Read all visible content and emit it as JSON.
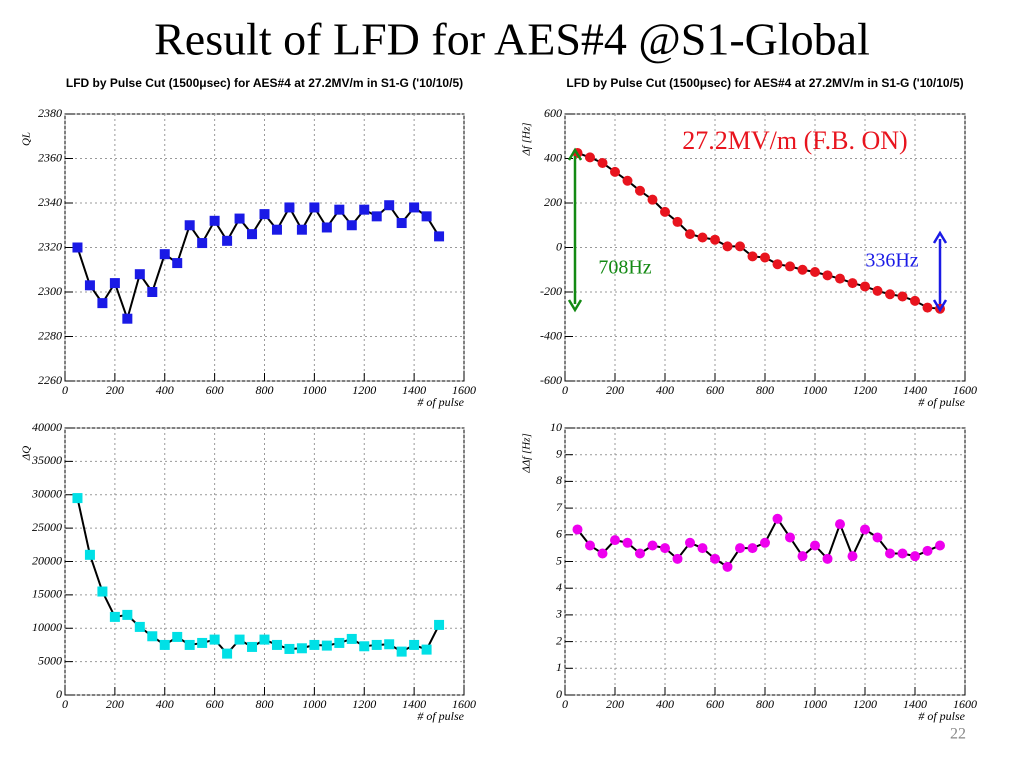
{
  "title": "Result of LFD for AES#4 @S1-Global",
  "page_number": "22",
  "chart_data": [
    {
      "type": "line",
      "marker": "square",
      "title": "LFD by Pulse Cut (1500μsec) for AES#4 at 27.2MV/m in S1-G ('10/10/5)",
      "ylabel": "QL",
      "xlabel": "# of pulse",
      "x": [
        50,
        100,
        150,
        200,
        250,
        300,
        350,
        400,
        450,
        500,
        550,
        600,
        650,
        700,
        750,
        800,
        850,
        900,
        950,
        1000,
        1050,
        1100,
        1150,
        1200,
        1250,
        1300,
        1350,
        1400,
        1450,
        1500
      ],
      "values": [
        2320,
        2303,
        2295,
        2304,
        2288,
        2308,
        2300,
        2317,
        2313,
        2330,
        2322,
        2332,
        2323,
        2333,
        2326,
        2335,
        2328,
        2338,
        2328,
        2338,
        2329,
        2337,
        2330,
        2337,
        2334,
        2339,
        2331,
        2338,
        2334,
        2325
      ],
      "color": "#1a1ae6",
      "xlim": [
        0,
        1600
      ],
      "xticks": [
        0,
        200,
        400,
        600,
        800,
        1000,
        1200,
        1400,
        1600
      ],
      "ylim": [
        2260,
        2380
      ],
      "yticks": [
        2260,
        2280,
        2300,
        2320,
        2340,
        2360,
        2380
      ],
      "grid": true
    },
    {
      "type": "line",
      "marker": "circle",
      "title": "LFD by Pulse Cut (1500μsec) for AES#4 at 27.2MV/m in S1-G ('10/10/5)",
      "ylabel": "Δf [Hz]",
      "xlabel": "# of pulse",
      "x": [
        50,
        100,
        150,
        200,
        250,
        300,
        350,
        400,
        450,
        500,
        550,
        600,
        650,
        700,
        750,
        800,
        850,
        900,
        950,
        1000,
        1050,
        1100,
        1150,
        1200,
        1250,
        1300,
        1350,
        1400,
        1450,
        1500
      ],
      "values": [
        425,
        405,
        380,
        340,
        300,
        255,
        215,
        160,
        115,
        60,
        45,
        35,
        5,
        5,
        -40,
        -45,
        -75,
        -85,
        -100,
        -110,
        -125,
        -140,
        -160,
        -175,
        -195,
        -210,
        -220,
        -240,
        -270,
        -275
      ],
      "color": "#e8141e",
      "xlim": [
        0,
        1600
      ],
      "xticks": [
        0,
        200,
        400,
        600,
        800,
        1000,
        1200,
        1400,
        1600
      ],
      "ylim": [
        -600,
        600
      ],
      "yticks": [
        -600,
        -400,
        -200,
        0,
        200,
        400,
        600
      ],
      "grid": true,
      "annotations": [
        {
          "text": "27.2MV/m (F.B. ON)",
          "color": "#e8141e"
        },
        {
          "text": "708Hz",
          "color": "#138a13"
        },
        {
          "text": "336Hz",
          "color": "#1a1ae6"
        }
      ]
    },
    {
      "type": "line",
      "marker": "square",
      "ylabel": "ΔQ",
      "xlabel": "# of pulse",
      "x": [
        50,
        100,
        150,
        200,
        250,
        300,
        350,
        400,
        450,
        500,
        550,
        600,
        650,
        700,
        750,
        800,
        850,
        900,
        950,
        1000,
        1050,
        1100,
        1150,
        1200,
        1250,
        1300,
        1350,
        1400,
        1450,
        1500
      ],
      "values": [
        29500,
        21000,
        15500,
        11700,
        12000,
        10200,
        8800,
        7500,
        8700,
        7500,
        7800,
        8300,
        6200,
        8300,
        7200,
        8300,
        7500,
        6900,
        7000,
        7500,
        7400,
        7800,
        8400,
        7300,
        7500,
        7600,
        6500,
        7500,
        6800,
        10500
      ],
      "color": "#00e0e6",
      "xlim": [
        0,
        1600
      ],
      "xticks": [
        0,
        200,
        400,
        600,
        800,
        1000,
        1200,
        1400,
        1600
      ],
      "ylim": [
        0,
        40000
      ],
      "yticks": [
        0,
        5000,
        10000,
        15000,
        20000,
        25000,
        30000,
        35000,
        40000
      ],
      "grid": true
    },
    {
      "type": "line",
      "marker": "circle",
      "ylabel": "ΔΔf [Hz]",
      "xlabel": "# of pulse",
      "x": [
        50,
        100,
        150,
        200,
        250,
        300,
        350,
        400,
        450,
        500,
        550,
        600,
        650,
        700,
        750,
        800,
        850,
        900,
        950,
        1000,
        1050,
        1100,
        1150,
        1200,
        1250,
        1300,
        1350,
        1400,
        1450,
        1500
      ],
      "values": [
        6.2,
        5.6,
        5.3,
        5.8,
        5.7,
        5.3,
        5.6,
        5.5,
        5.1,
        5.7,
        5.5,
        5.1,
        4.8,
        5.5,
        5.5,
        5.7,
        6.6,
        5.9,
        5.2,
        5.6,
        5.1,
        6.4,
        5.2,
        6.2,
        5.9,
        5.3,
        5.3,
        5.2,
        5.4,
        5.6
      ],
      "color": "#ee00ee",
      "xlim": [
        0,
        1600
      ],
      "xticks": [
        0,
        200,
        400,
        600,
        800,
        1000,
        1200,
        1400,
        1600
      ],
      "ylim": [
        0,
        10
      ],
      "yticks": [
        0,
        1,
        2,
        3,
        4,
        5,
        6,
        7,
        8,
        9,
        10
      ],
      "grid": true
    }
  ]
}
